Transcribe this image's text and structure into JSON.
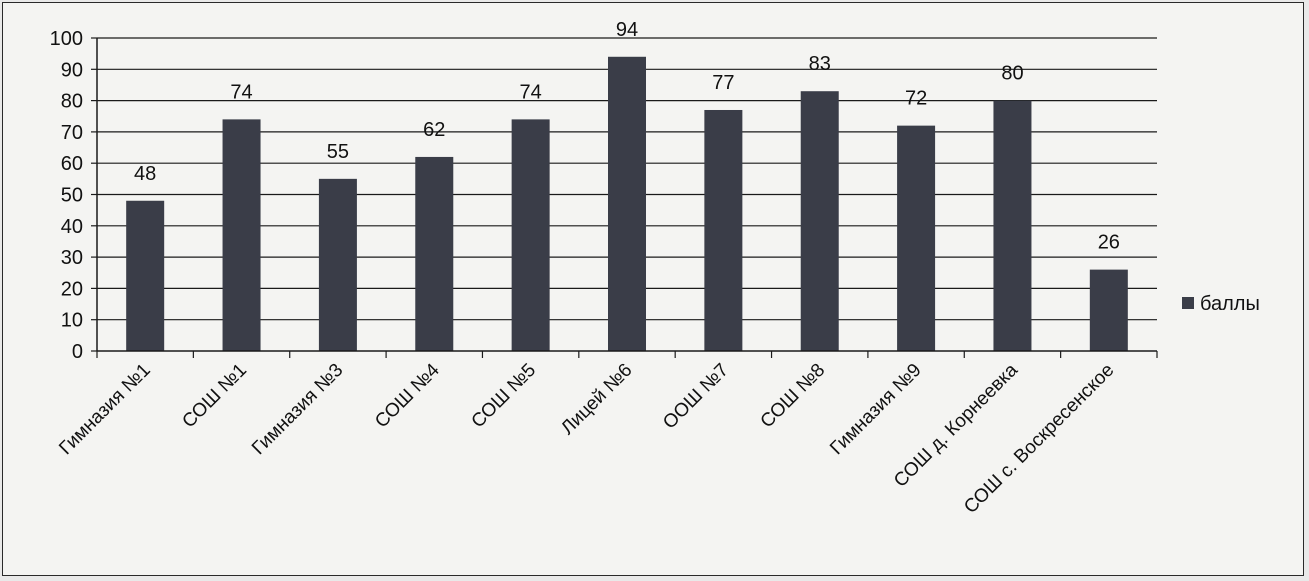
{
  "chart_data": {
    "type": "bar",
    "categories": [
      "Гимназия №1",
      "СОШ №1",
      "Гимназия №3",
      "СОШ №4",
      "СОШ №5",
      "Лицей №6",
      "ООШ №7",
      "СОШ №8",
      "Гимназия №9",
      "СОШ д. Корнеевка",
      "СОШ с. Воскресенское"
    ],
    "series": [
      {
        "name": "баллы",
        "values": [
          48,
          74,
          55,
          62,
          74,
          94,
          77,
          83,
          72,
          80,
          26
        ]
      }
    ],
    "ylim": [
      0,
      100
    ],
    "yticks": [
      0,
      10,
      20,
      30,
      40,
      50,
      60,
      70,
      80,
      90,
      100
    ],
    "grid": true,
    "legend_position": "right",
    "data_labels": true,
    "colors": {
      "bar": "#3a3d48",
      "grid": "#1a1a1a",
      "axis": "#1a1a1a"
    }
  }
}
